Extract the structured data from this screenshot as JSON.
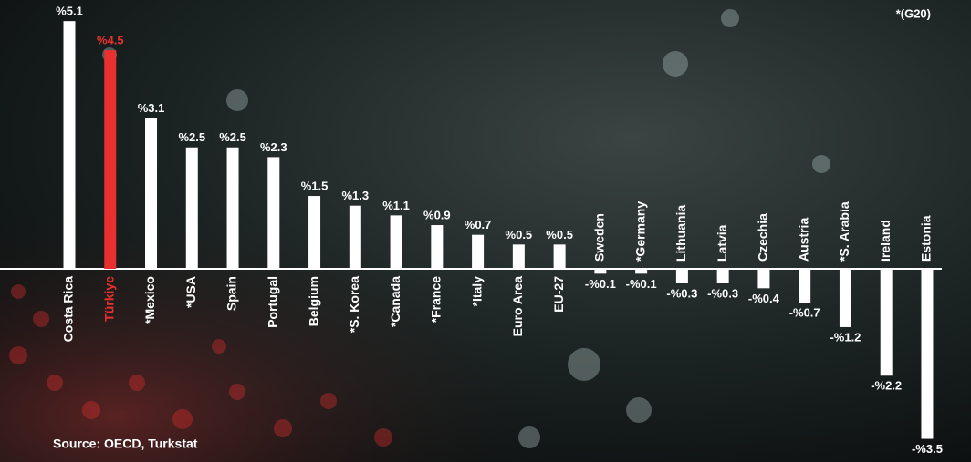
{
  "chart_data": {
    "type": "bar",
    "annotation": "*(G20)",
    "source": "Source: OECD, Turkstat",
    "categories": [
      "Costa Rica",
      "Türkiye",
      "*Mexico",
      "*USA",
      "Spain",
      "Portugal",
      "Belgium",
      "*S. Korea",
      "*Canada",
      "*France",
      "*Italy",
      "Euro Area",
      "EU-27",
      "Sweden",
      "*Germany",
      "Lithuania",
      "Latvia",
      "Czechia",
      "Austria",
      "*S. Arabia",
      "Ireland",
      "Estonia"
    ],
    "values": [
      5.1,
      4.5,
      3.1,
      2.5,
      2.5,
      2.3,
      1.5,
      1.3,
      1.1,
      0.9,
      0.7,
      0.5,
      0.5,
      -0.1,
      -0.1,
      -0.3,
      -0.3,
      -0.4,
      -0.7,
      -1.2,
      -2.2,
      -3.5
    ],
    "value_labels": [
      "%5.1",
      "%4.5",
      "%3.1",
      "%2.5",
      "%2.5",
      "%2.3",
      "%1.5",
      "%1.3",
      "%1.1",
      "%0.9",
      "%0.7",
      "%0.5",
      "%0.5",
      "-%0.1",
      "-%0.1",
      "-%0.3",
      "-%0.3",
      "-%0.4",
      "-%0.7",
      "-%1.2",
      "-%2.2",
      "-%3.5"
    ],
    "colors": [
      "#ffffff",
      "#e8312f",
      "#ffffff",
      "#ffffff",
      "#ffffff",
      "#ffffff",
      "#ffffff",
      "#ffffff",
      "#ffffff",
      "#ffffff",
      "#ffffff",
      "#ffffff",
      "#ffffff",
      "#ffffff",
      "#ffffff",
      "#ffffff",
      "#ffffff",
      "#ffffff",
      "#ffffff",
      "#ffffff",
      "#ffffff",
      "#ffffff"
    ]
  }
}
